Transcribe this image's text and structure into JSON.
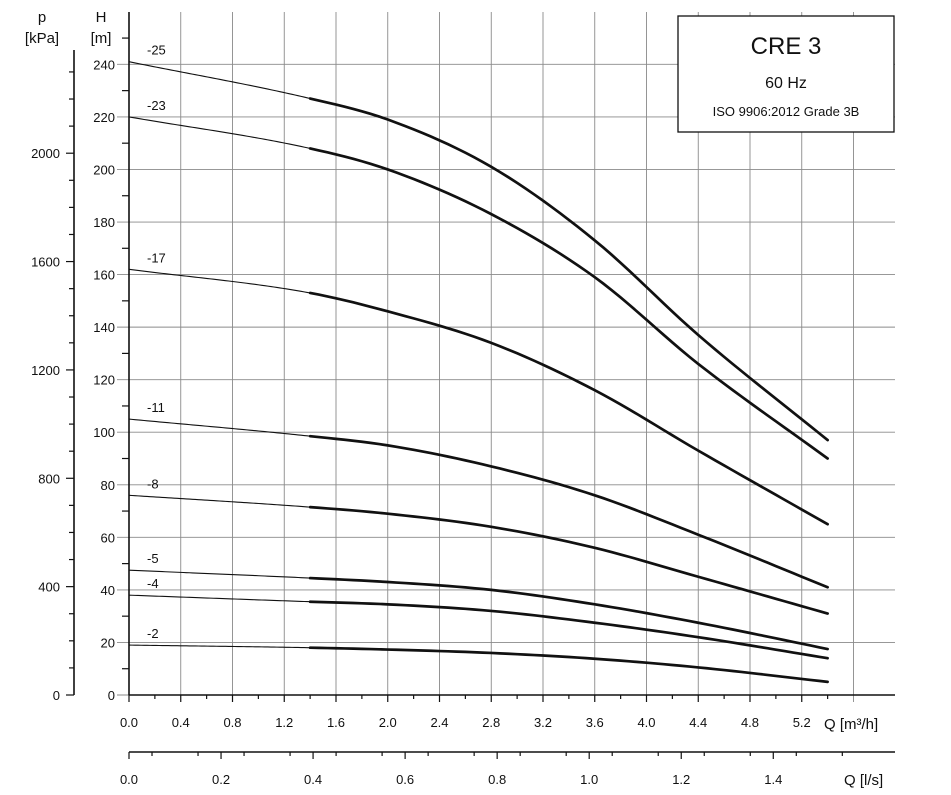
{
  "chart_data": {
    "type": "line",
    "title": "CRE 3",
    "subtitle": "60 Hz",
    "standard": "ISO 9906:2012 Grade 3B",
    "left_axis": {
      "symbol": "p",
      "unit": "[kPa]",
      "ticks": [
        0,
        400,
        800,
        1200,
        1600,
        2000
      ]
    },
    "yaxis": {
      "symbol": "H",
      "unit": "[m]",
      "ylim": [
        0,
        260
      ],
      "ticks": [
        0,
        20,
        40,
        60,
        80,
        100,
        120,
        140,
        160,
        180,
        200,
        220,
        240
      ]
    },
    "xaxis": {
      "label": "Q [m³/h]",
      "xlim": [
        0,
        5.6
      ],
      "ticks": [
        "0.0",
        "0.4",
        "0.8",
        "1.2",
        "1.6",
        "2.0",
        "2.4",
        "2.8",
        "3.2",
        "3.6",
        "4.0",
        "4.4",
        "4.8",
        "5.2"
      ]
    },
    "xaxis2": {
      "label": "Q [l/s]",
      "ticks": [
        "0.0",
        "0.2",
        "0.4",
        "0.6",
        "0.8",
        "1.0",
        "1.2",
        "1.4"
      ]
    },
    "grid": true,
    "recommended_range_start": 1.4,
    "x": [
      0,
      1.4,
      2.0,
      2.8,
      3.6,
      4.4,
      5.4
    ],
    "series": [
      {
        "name": "-25",
        "values": [
          241,
          227,
          219,
          201,
          173,
          137,
          97
        ]
      },
      {
        "name": "-23",
        "values": [
          220,
          208,
          200,
          183,
          159,
          126,
          90
        ]
      },
      {
        "name": "-17",
        "values": [
          162,
          153,
          146,
          134,
          116,
          93,
          65
        ]
      },
      {
        "name": "-11",
        "values": [
          105,
          98.5,
          95,
          87,
          76,
          61,
          41
        ]
      },
      {
        "name": "-8",
        "values": [
          76,
          71.5,
          69,
          64,
          56,
          45,
          31
        ]
      },
      {
        "name": "-5",
        "values": [
          47.5,
          44.5,
          43,
          40,
          34.5,
          27.5,
          17.5
        ]
      },
      {
        "name": "-4",
        "values": [
          38,
          35.5,
          34.5,
          32,
          27.5,
          22,
          14
        ]
      },
      {
        "name": "-2",
        "values": [
          19,
          18,
          17.3,
          16,
          13.8,
          10.5,
          5
        ]
      }
    ]
  }
}
